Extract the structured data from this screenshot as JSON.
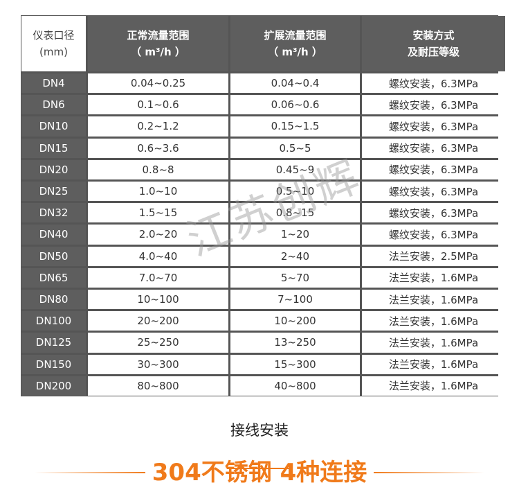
{
  "table": {
    "headers": [
      {
        "line1": "仪表口径",
        "line2": "(mm)"
      },
      {
        "line1": "正常流量范围",
        "line2": "（ m³/h ）"
      },
      {
        "line1": "扩展流量范围",
        "line2": "（ m³/h ）"
      },
      {
        "line1": "安装方式",
        "line2": "及耐压等级"
      }
    ],
    "rows": [
      [
        "DN4",
        "0.04~0.25",
        "0.04~0.4",
        "螺纹安装，6.3MPa"
      ],
      [
        "DN6",
        "0.1~0.6",
        "0.06~0.6",
        "螺纹安装，6.3MPa"
      ],
      [
        "DN10",
        "0.2~1.2",
        "0.15~1.5",
        "螺纹安装，6.3MPa"
      ],
      [
        "DN15",
        "0.6~3.6",
        "0.5~5",
        "螺纹安装，6.3MPa"
      ],
      [
        "DN20",
        "0.8~8",
        "0.45~9",
        "螺纹安装，6.3MPa"
      ],
      [
        "DN25",
        "1.0~10",
        "0.5~10",
        "螺纹安装，6.3MPa"
      ],
      [
        "DN32",
        "1.5~15",
        "0.8~15",
        "螺纹安装，6.3MPa"
      ],
      [
        "DN40",
        "2.0~20",
        "1~20",
        "螺纹安装，6.3MPa"
      ],
      [
        "DN50",
        "4.0~40",
        "2~40",
        "法兰安装，2.5MPa"
      ],
      [
        "DN65",
        "7.0~70",
        "5~70",
        "法兰安装，1.6MPa"
      ],
      [
        "DN80",
        "10~100",
        "7~100",
        "法兰安装，1.6MPa"
      ],
      [
        "DN100",
        "20~200",
        "10~200",
        "法兰安装，1.6MPa"
      ],
      [
        "DN125",
        "25~250",
        "13~250",
        "法兰安装，1.6MPa"
      ],
      [
        "DN150",
        "30~300",
        "15~300",
        "法兰安装，1.6MPa"
      ],
      [
        "DN200",
        "80~800",
        "40~800",
        "法兰安装，1.6MPa"
      ]
    ]
  },
  "watermark": "江苏创辉",
  "section": {
    "title": "接线安装",
    "slogan": "304不锈钢 4种连接"
  },
  "colors": {
    "accent": "#f07a1a",
    "header_bg": "#5e5e5e"
  }
}
